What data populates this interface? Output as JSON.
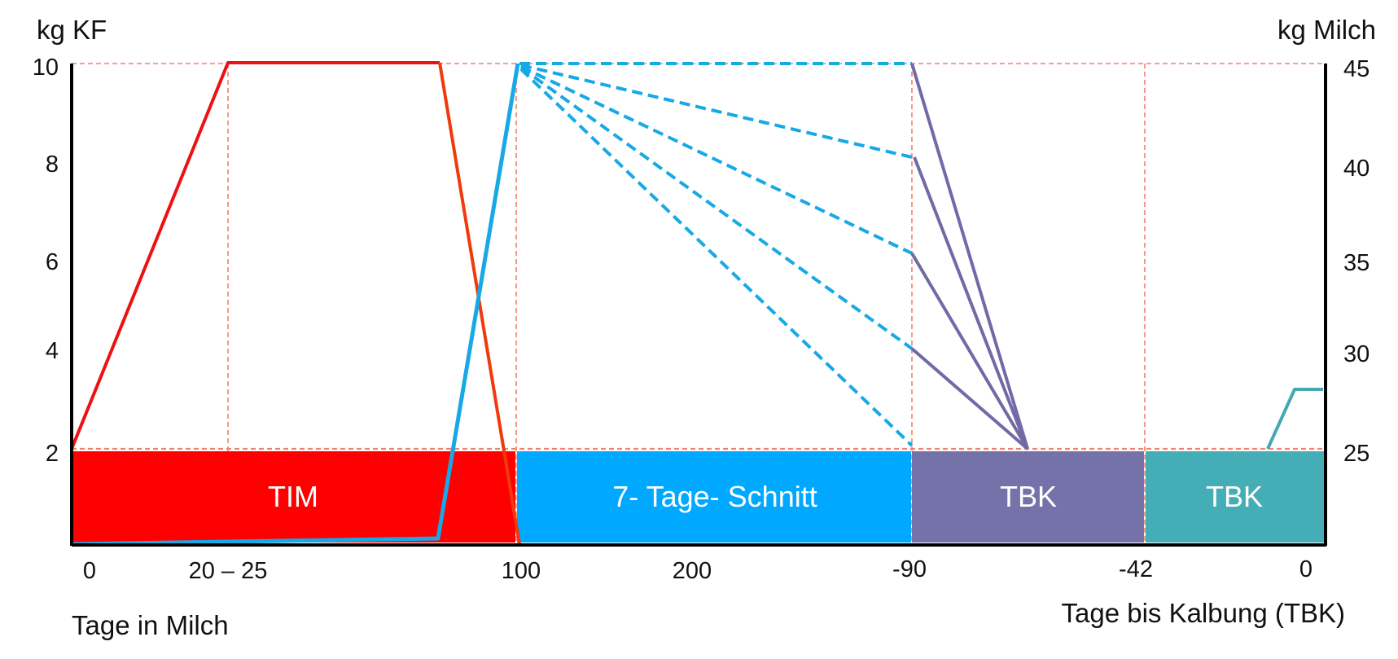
{
  "chart_data": {
    "type": "line",
    "title": "",
    "y_left_label": "kg KF",
    "y_right_label": "kg Milch",
    "x_label_left": "Tage in Milch",
    "x_label_right": "Tage bis Kalbung (TBK)",
    "y_left_ticks": [
      "2",
      "4",
      "6",
      "8",
      "10"
    ],
    "y_right_ticks": [
      "25",
      "30",
      "35",
      "40",
      "45"
    ],
    "x_ticks": [
      "0",
      "20 – 25",
      "100",
      "200",
      "-90",
      "-42",
      "0"
    ],
    "bands": [
      {
        "label": "TIM",
        "color": "#ff0000"
      },
      {
        "label": "7- Tage- Schnitt",
        "color": "#00a8ff"
      },
      {
        "label": "TBK",
        "color": "#7571a9"
      },
      {
        "label": "TBK",
        "color": "#45adb6"
      }
    ],
    "colors": {
      "red_line": "#ee1111",
      "orange_line": "#f03a0c",
      "blue_line": "#17a9e6",
      "purple_line": "#716aa6",
      "teal_line": "#45a8b3",
      "grid": "#f0826e"
    }
  }
}
